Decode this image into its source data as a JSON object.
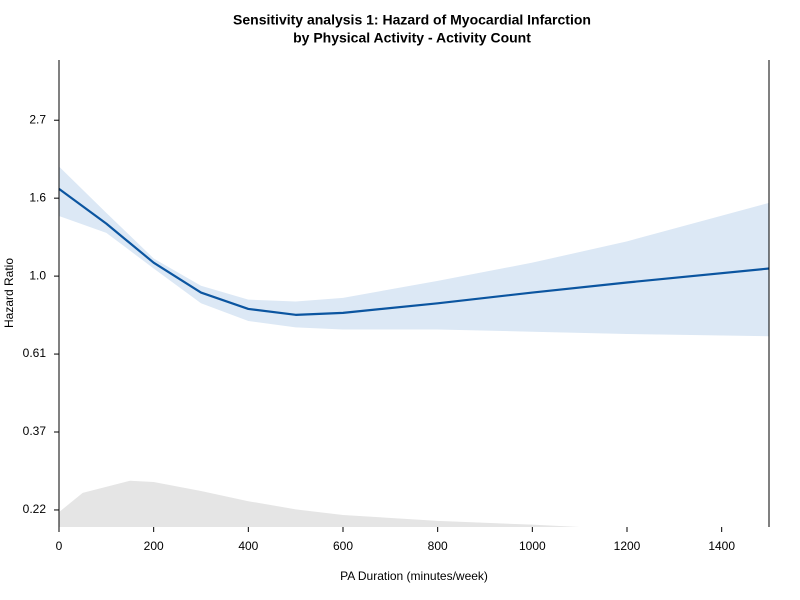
{
  "chart_data": {
    "type": "line",
    "title": "Sensitivity analysis 1: Hazard of Myocardial Infarction",
    "subtitle": "by Physical Activity - Activity Count",
    "xlabel": "PA Duration (minutes/week)",
    "ylabel": "Hazard Ratio",
    "x": [
      0,
      100,
      200,
      300,
      400,
      500,
      600,
      800,
      1000,
      1200,
      1500
    ],
    "values": [
      1.75,
      1.4,
      1.09,
      0.9,
      0.81,
      0.78,
      0.79,
      0.84,
      0.9,
      0.96,
      1.05
    ],
    "upper": [
      2.02,
      1.5,
      1.12,
      0.94,
      0.86,
      0.85,
      0.87,
      0.97,
      1.09,
      1.25,
      1.6
    ],
    "lower": [
      1.47,
      1.32,
      1.05,
      0.84,
      0.75,
      0.72,
      0.71,
      0.71,
      0.7,
      0.69,
      0.68
    ],
    "color": "#0b55a0",
    "band_color": "#dce8f5",
    "density": {
      "x": [
        0,
        50,
        150,
        200,
        300,
        400,
        500,
        600,
        800,
        1000,
        1100
      ],
      "values": [
        0.22,
        0.249,
        0.269,
        0.267,
        0.252,
        0.236,
        0.224,
        0.216,
        0.208,
        0.203,
        0.2
      ],
      "color": "#e5e5e5"
    },
    "log_y": true,
    "xlim": [
      0,
      1500
    ],
    "xticks": [
      0,
      200,
      400,
      600,
      800,
      1000,
      1200,
      1400
    ],
    "ylim": [
      0.2,
      4.0
    ],
    "yticks": [
      {
        "value": 0.2231,
        "label": "0.22"
      },
      {
        "value": 0.3679,
        "label": "0.37"
      },
      {
        "value": 0.6065,
        "label": "0.61"
      },
      {
        "value": 1,
        "label": "1.0"
      },
      {
        "value": 1.6487,
        "label": "1.6"
      },
      {
        "value": 2.7183,
        "label": "2.7"
      }
    ]
  }
}
